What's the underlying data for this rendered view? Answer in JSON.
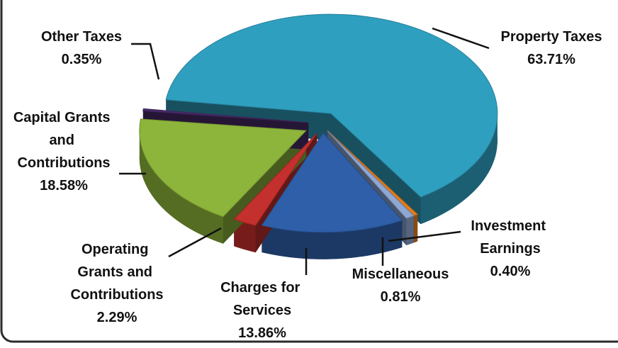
{
  "chart_data": {
    "type": "pie",
    "categories": [
      "Property Taxes",
      "Investment Earnings",
      "Miscellaneous",
      "Charges for Services",
      "Operating Grants and Contributions",
      "Capital Grants and Contributions",
      "Other Taxes"
    ],
    "values": [
      63.71,
      0.4,
      0.81,
      13.86,
      2.29,
      18.58,
      0.35
    ],
    "value_labels": [
      "63.71%",
      "0.40%",
      "0.81%",
      "13.86%",
      "2.29%",
      "18.58%",
      "0.35%"
    ],
    "colors": [
      "#2f9fbf",
      "#e47d1c",
      "#8ea8d4",
      "#2e5fa8",
      "#c4302d",
      "#8db53b",
      "#4a2b6b"
    ]
  }
}
